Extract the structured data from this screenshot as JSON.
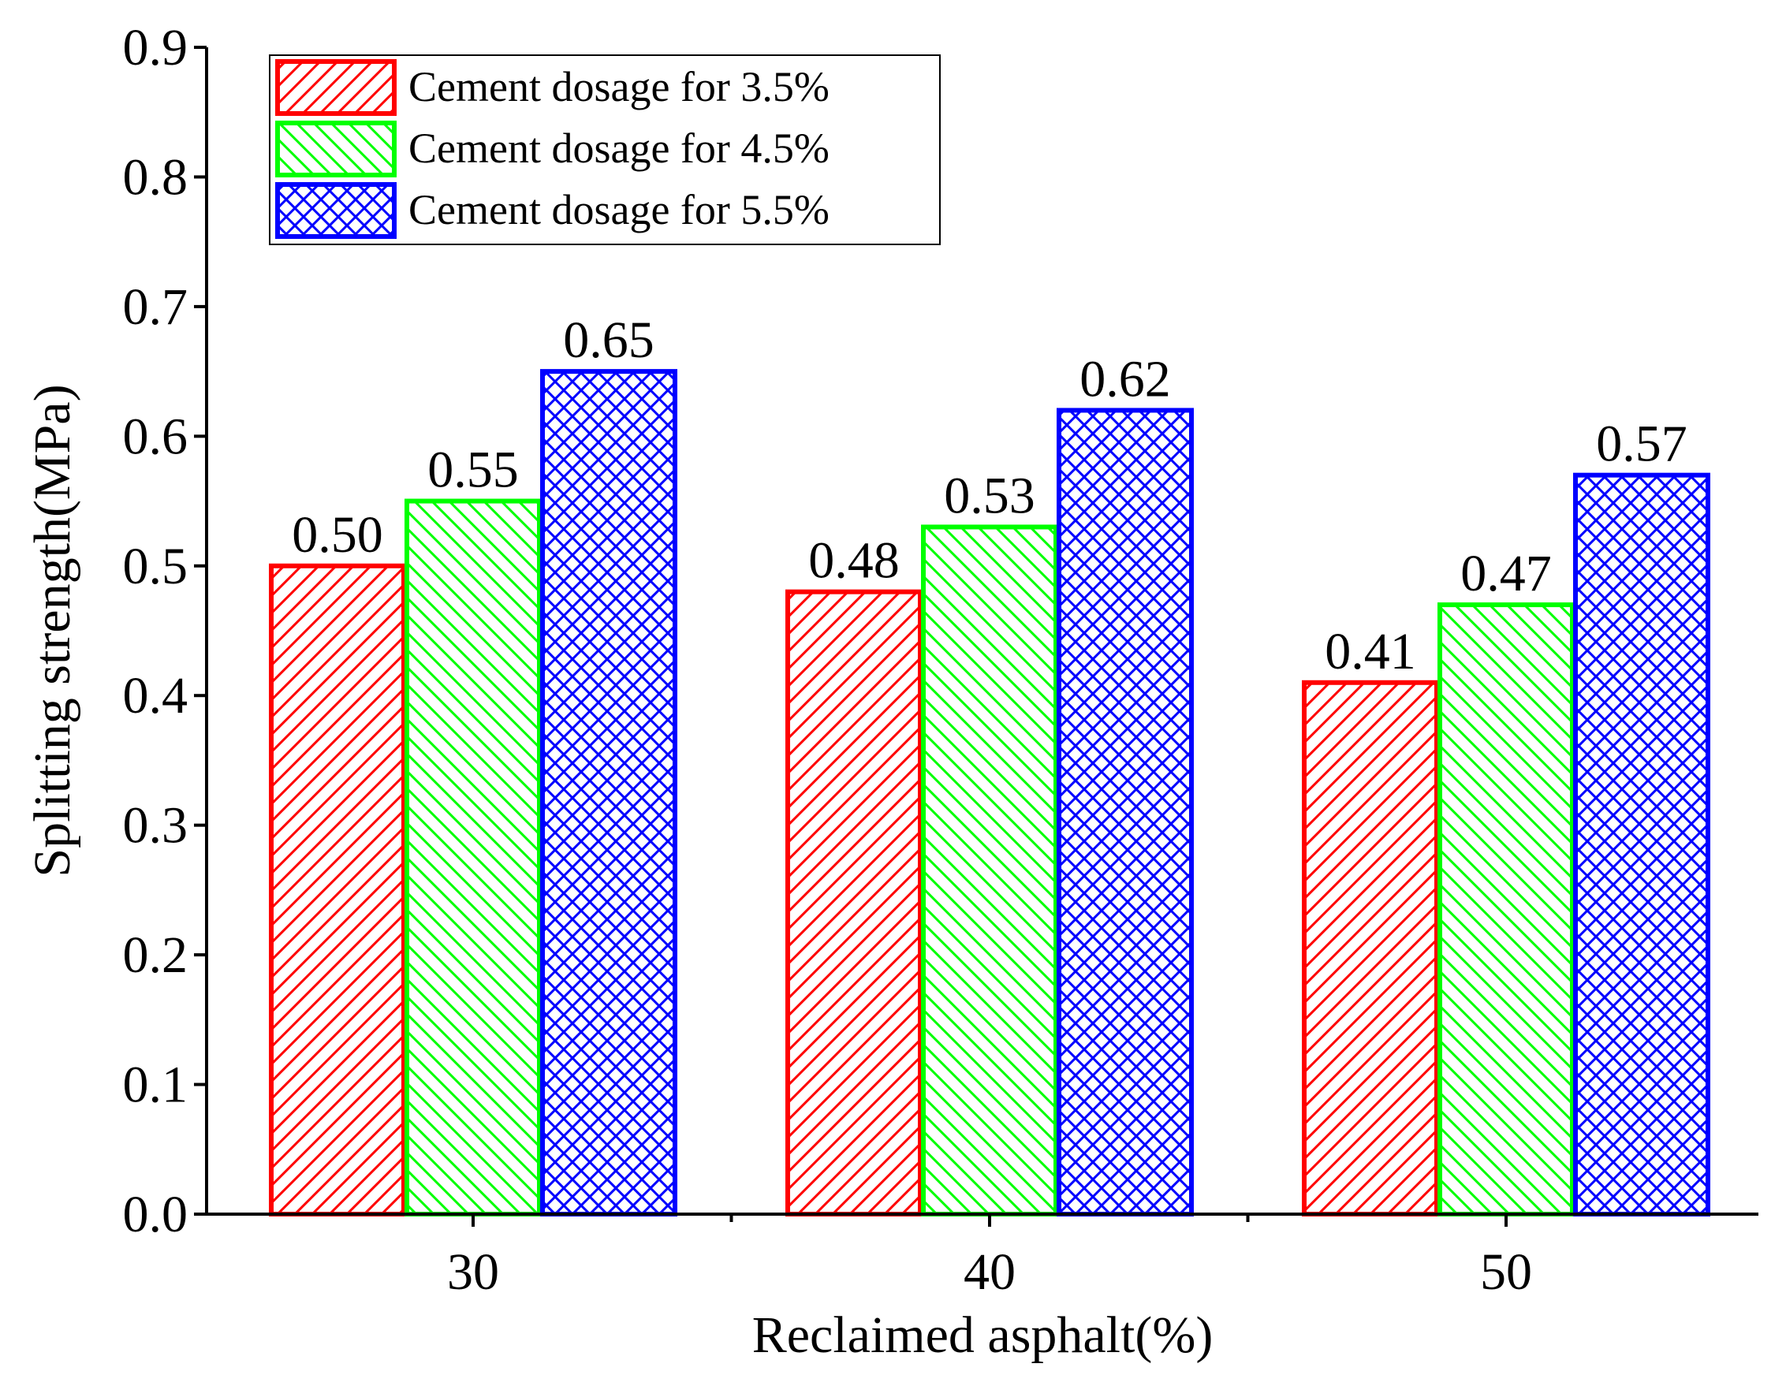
{
  "chart_data": {
    "type": "bar",
    "title": "",
    "xlabel": "Reclaimed asphalt(%)",
    "ylabel": "Splitting strength(MPa)",
    "ylim": [
      0,
      0.9
    ],
    "ytick_labels": [
      "0.0",
      "0.1",
      "0.2",
      "0.3",
      "0.4",
      "0.5",
      "0.6",
      "0.7",
      "0.8",
      "0.9"
    ],
    "categories": [
      "30",
      "40",
      "50"
    ],
    "legend_position": "top-left",
    "series": [
      {
        "name": "Cement dosage for 3.5%",
        "color": "#ff0000",
        "pattern": "diagonal-up",
        "values": [
          0.5,
          0.48,
          0.41
        ],
        "labels": [
          "0.50",
          "0.48",
          "0.41"
        ]
      },
      {
        "name": "Cement dosage for 4.5%",
        "color": "#00ff00",
        "pattern": "diagonal-down",
        "values": [
          0.55,
          0.53,
          0.47
        ],
        "labels": [
          "0.55",
          "0.53",
          "0.47"
        ]
      },
      {
        "name": "Cement dosage for 5.5%",
        "color": "#0000ff",
        "pattern": "crosshatch",
        "values": [
          0.65,
          0.62,
          0.57
        ],
        "labels": [
          "0.65",
          "0.62",
          "0.57"
        ]
      }
    ]
  }
}
